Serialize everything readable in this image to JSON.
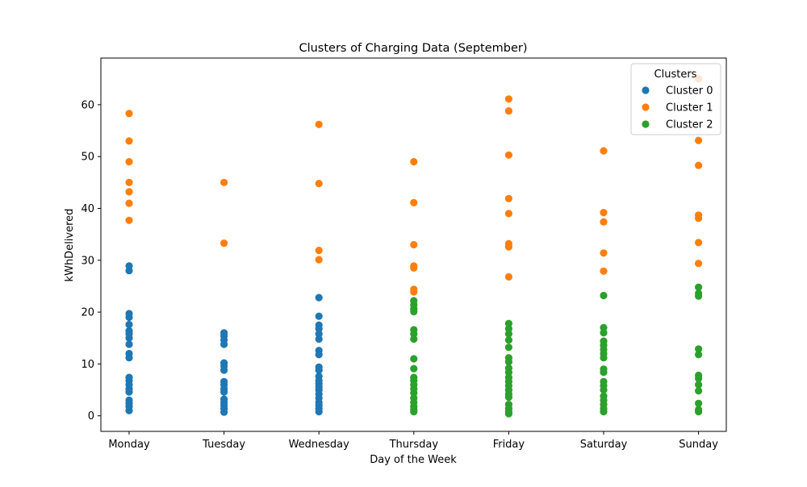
{
  "chart_data": {
    "type": "scatter",
    "title": "Clusters of Charging Data (September)",
    "xlabel": "Day of the Week",
    "ylabel": "kWhDelivered",
    "categories": [
      "Monday",
      "Tuesday",
      "Wednesday",
      "Thursday",
      "Friday",
      "Saturday",
      "Sunday"
    ],
    "ylim": [
      -3,
      69
    ],
    "yticks": [
      0,
      10,
      20,
      30,
      40,
      50,
      60
    ],
    "grid": false,
    "legend": {
      "title": "Clusters",
      "placement": "top-right"
    },
    "series": [
      {
        "name": "Cluster 0",
        "color": "#1f77b4",
        "points": [
          [
            "Monday",
            28.9
          ],
          [
            "Monday",
            28.0
          ],
          [
            "Monday",
            19.7
          ],
          [
            "Monday",
            19.0
          ],
          [
            "Monday",
            17.6
          ],
          [
            "Monday",
            16.4
          ],
          [
            "Monday",
            15.8
          ],
          [
            "Monday",
            15.0
          ],
          [
            "Monday",
            13.8
          ],
          [
            "Monday",
            12.0
          ],
          [
            "Monday",
            11.2
          ],
          [
            "Monday",
            7.4
          ],
          [
            "Monday",
            6.8
          ],
          [
            "Monday",
            6.0
          ],
          [
            "Monday",
            5.2
          ],
          [
            "Monday",
            4.6
          ],
          [
            "Monday",
            3.0
          ],
          [
            "Monday",
            2.4
          ],
          [
            "Monday",
            1.8
          ],
          [
            "Monday",
            1.0
          ],
          [
            "Tuesday",
            16.0
          ],
          [
            "Tuesday",
            15.4
          ],
          [
            "Tuesday",
            14.6
          ],
          [
            "Tuesday",
            13.8
          ],
          [
            "Tuesday",
            10.2
          ],
          [
            "Tuesday",
            9.6
          ],
          [
            "Tuesday",
            8.8
          ],
          [
            "Tuesday",
            6.6
          ],
          [
            "Tuesday",
            6.0
          ],
          [
            "Tuesday",
            5.2
          ],
          [
            "Tuesday",
            4.6
          ],
          [
            "Tuesday",
            3.2
          ],
          [
            "Tuesday",
            2.6
          ],
          [
            "Tuesday",
            2.0
          ],
          [
            "Tuesday",
            1.4
          ],
          [
            "Tuesday",
            0.7
          ],
          [
            "Wednesday",
            22.8
          ],
          [
            "Wednesday",
            19.2
          ],
          [
            "Wednesday",
            17.5
          ],
          [
            "Wednesday",
            16.8
          ],
          [
            "Wednesday",
            15.8
          ],
          [
            "Wednesday",
            14.8
          ],
          [
            "Wednesday",
            12.6
          ],
          [
            "Wednesday",
            11.8
          ],
          [
            "Wednesday",
            9.4
          ],
          [
            "Wednesday",
            8.8
          ],
          [
            "Wednesday",
            7.6
          ],
          [
            "Wednesday",
            6.8
          ],
          [
            "Wednesday",
            6.2
          ],
          [
            "Wednesday",
            5.6
          ],
          [
            "Wednesday",
            5.0
          ],
          [
            "Wednesday",
            4.2
          ],
          [
            "Wednesday",
            3.4
          ],
          [
            "Wednesday",
            2.6
          ],
          [
            "Wednesday",
            2.0
          ],
          [
            "Wednesday",
            1.4
          ],
          [
            "Wednesday",
            0.8
          ]
        ]
      },
      {
        "name": "Cluster 1",
        "color": "#ff7f0e",
        "points": [
          [
            "Monday",
            58.3
          ],
          [
            "Monday",
            53.0
          ],
          [
            "Monday",
            49.0
          ],
          [
            "Monday",
            45.0
          ],
          [
            "Monday",
            43.2
          ],
          [
            "Monday",
            41.0
          ],
          [
            "Monday",
            37.7
          ],
          [
            "Tuesday",
            45.0
          ],
          [
            "Tuesday",
            33.3
          ],
          [
            "Wednesday",
            56.2
          ],
          [
            "Wednesday",
            44.8
          ],
          [
            "Wednesday",
            31.9
          ],
          [
            "Wednesday",
            30.1
          ],
          [
            "Thursday",
            49.0
          ],
          [
            "Thursday",
            41.1
          ],
          [
            "Thursday",
            33.0
          ],
          [
            "Thursday",
            28.9
          ],
          [
            "Thursday",
            28.5
          ],
          [
            "Thursday",
            24.4
          ],
          [
            "Thursday",
            23.9
          ],
          [
            "Friday",
            61.1
          ],
          [
            "Friday",
            58.8
          ],
          [
            "Friday",
            50.3
          ],
          [
            "Friday",
            41.9
          ],
          [
            "Friday",
            39.0
          ],
          [
            "Friday",
            33.2
          ],
          [
            "Friday",
            32.6
          ],
          [
            "Friday",
            26.8
          ],
          [
            "Saturday",
            51.1
          ],
          [
            "Saturday",
            39.2
          ],
          [
            "Saturday",
            37.4
          ],
          [
            "Saturday",
            31.4
          ],
          [
            "Saturday",
            27.9
          ],
          [
            "Sunday",
            65.0
          ],
          [
            "Sunday",
            53.1
          ],
          [
            "Sunday",
            48.3
          ],
          [
            "Sunday",
            38.7
          ],
          [
            "Sunday",
            38.1
          ],
          [
            "Sunday",
            33.4
          ],
          [
            "Sunday",
            29.4
          ]
        ]
      },
      {
        "name": "Cluster 2",
        "color": "#2ca02c",
        "points": [
          [
            "Thursday",
            22.2
          ],
          [
            "Thursday",
            21.4
          ],
          [
            "Thursday",
            20.6
          ],
          [
            "Thursday",
            20.1
          ],
          [
            "Thursday",
            16.6
          ],
          [
            "Thursday",
            15.8
          ],
          [
            "Thursday",
            14.8
          ],
          [
            "Thursday",
            11.0
          ],
          [
            "Thursday",
            9.1
          ],
          [
            "Thursday",
            7.4
          ],
          [
            "Thursday",
            6.8
          ],
          [
            "Thursday",
            6.0
          ],
          [
            "Thursday",
            5.2
          ],
          [
            "Thursday",
            4.4
          ],
          [
            "Thursday",
            3.4
          ],
          [
            "Thursday",
            2.6
          ],
          [
            "Thursday",
            1.8
          ],
          [
            "Thursday",
            1.2
          ],
          [
            "Thursday",
            0.8
          ],
          [
            "Friday",
            17.8
          ],
          [
            "Friday",
            16.8
          ],
          [
            "Friday",
            15.8
          ],
          [
            "Friday",
            14.6
          ],
          [
            "Friday",
            13.2
          ],
          [
            "Friday",
            11.2
          ],
          [
            "Friday",
            10.4
          ],
          [
            "Friday",
            9.2
          ],
          [
            "Friday",
            8.4
          ],
          [
            "Friday",
            7.4
          ],
          [
            "Friday",
            6.6
          ],
          [
            "Friday",
            5.8
          ],
          [
            "Friday",
            5.0
          ],
          [
            "Friday",
            4.2
          ],
          [
            "Friday",
            3.6
          ],
          [
            "Friday",
            2.2
          ],
          [
            "Friday",
            1.4
          ],
          [
            "Friday",
            0.8
          ],
          [
            "Friday",
            0.4
          ],
          [
            "Saturday",
            23.2
          ],
          [
            "Saturday",
            17.0
          ],
          [
            "Saturday",
            16.0
          ],
          [
            "Saturday",
            14.4
          ],
          [
            "Saturday",
            13.6
          ],
          [
            "Saturday",
            12.8
          ],
          [
            "Saturday",
            12.0
          ],
          [
            "Saturday",
            11.2
          ],
          [
            "Saturday",
            9.0
          ],
          [
            "Saturday",
            8.4
          ],
          [
            "Saturday",
            6.6
          ],
          [
            "Saturday",
            5.8
          ],
          [
            "Saturday",
            5.0
          ],
          [
            "Saturday",
            3.8
          ],
          [
            "Saturday",
            3.0
          ],
          [
            "Saturday",
            2.2
          ],
          [
            "Saturday",
            1.4
          ],
          [
            "Saturday",
            0.8
          ],
          [
            "Sunday",
            24.8
          ],
          [
            "Sunday",
            23.6
          ],
          [
            "Sunday",
            23.1
          ],
          [
            "Sunday",
            12.9
          ],
          [
            "Sunday",
            11.8
          ],
          [
            "Sunday",
            7.8
          ],
          [
            "Sunday",
            7.2
          ],
          [
            "Sunday",
            6.0
          ],
          [
            "Sunday",
            4.8
          ],
          [
            "Sunday",
            2.4
          ],
          [
            "Sunday",
            1.2
          ],
          [
            "Sunday",
            0.8
          ]
        ]
      }
    ]
  }
}
